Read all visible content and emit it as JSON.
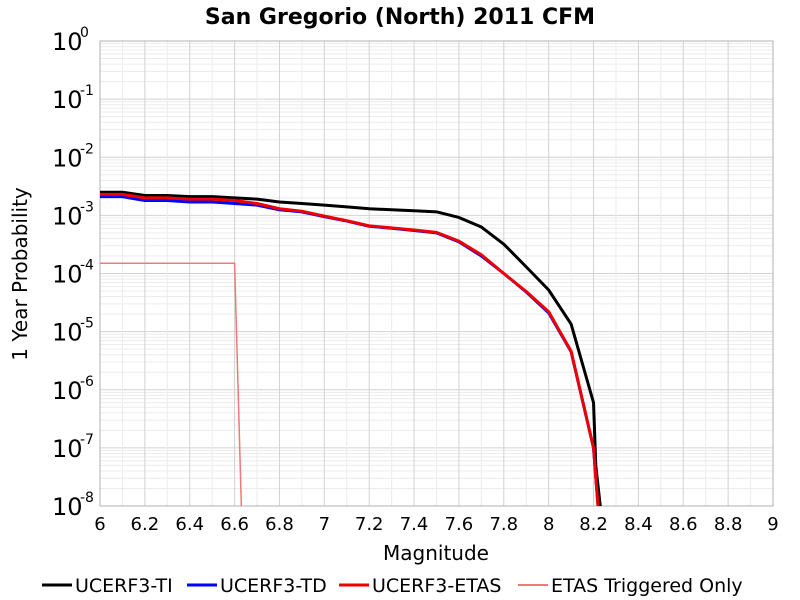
{
  "chart_data": {
    "type": "line",
    "title": "San Gregorio (North) 2011 CFM",
    "xlabel": "Magnitude",
    "ylabel": "1 Year Probability",
    "xlim": [
      6,
      9
    ],
    "ylim": [
      1e-08,
      1
    ],
    "y_scale": "log",
    "grid": true,
    "legend_position": "bottom",
    "x_ticks": [
      "6",
      "6.2",
      "6.4",
      "6.6",
      "6.8",
      "7",
      "7.2",
      "7.4",
      "7.6",
      "7.8",
      "8",
      "8.2",
      "8.4",
      "8.6",
      "8.8",
      "9"
    ],
    "y_ticks": [
      {
        "base": "10",
        "exp": "0",
        "value": 1
      },
      {
        "base": "10",
        "exp": "-1",
        "value": 0.1
      },
      {
        "base": "10",
        "exp": "-2",
        "value": 0.01
      },
      {
        "base": "10",
        "exp": "-3",
        "value": 0.001
      },
      {
        "base": "10",
        "exp": "-4",
        "value": 0.0001
      },
      {
        "base": "10",
        "exp": "-5",
        "value": 1e-05
      },
      {
        "base": "10",
        "exp": "-6",
        "value": 1e-06
      },
      {
        "base": "10",
        "exp": "-7",
        "value": 1e-07
      },
      {
        "base": "10",
        "exp": "-8",
        "value": 1e-08
      }
    ],
    "series": [
      {
        "name": "UCERF3-TI",
        "color": "#000000",
        "x": [
          6.0,
          6.1,
          6.2,
          6.3,
          6.4,
          6.5,
          6.6,
          6.7,
          6.8,
          6.9,
          7.0,
          7.1,
          7.2,
          7.3,
          7.4,
          7.5,
          7.6,
          7.7,
          7.8,
          7.9,
          8.0,
          8.1,
          8.2,
          8.21,
          8.23
        ],
        "y": [
          0.0025,
          0.0025,
          0.0022,
          0.0022,
          0.0021,
          0.0021,
          0.002,
          0.0019,
          0.0017,
          0.0016,
          0.0015,
          0.0014,
          0.0013,
          0.00125,
          0.0012,
          0.00115,
          0.00092,
          0.00063,
          0.00032,
          0.00013,
          5.2e-05,
          1.35e-05,
          6e-07,
          5e-08,
          1e-08
        ]
      },
      {
        "name": "UCERF3-TD",
        "color": "#0000ff",
        "x": [
          6.0,
          6.1,
          6.2,
          6.3,
          6.4,
          6.5,
          6.6,
          6.7,
          6.8,
          6.9,
          7.0,
          7.1,
          7.2,
          7.3,
          7.4,
          7.5,
          7.6,
          7.7,
          7.8,
          7.9,
          8.0,
          8.1,
          8.2,
          8.22
        ],
        "y": [
          0.0021,
          0.0021,
          0.0018,
          0.0018,
          0.0017,
          0.0017,
          0.0016,
          0.0015,
          0.00125,
          0.00115,
          0.00095,
          0.0008,
          0.00065,
          0.0006,
          0.00055,
          0.0005,
          0.00035,
          0.0002,
          0.0001,
          4.8e-05,
          2.1e-05,
          4.5e-06,
          1e-07,
          1e-08
        ]
      },
      {
        "name": "UCERF3-ETAS",
        "color": "#ee0000",
        "x": [
          6.0,
          6.1,
          6.2,
          6.3,
          6.4,
          6.5,
          6.6,
          6.7,
          6.8,
          6.9,
          7.0,
          7.1,
          7.2,
          7.3,
          7.4,
          7.5,
          7.6,
          7.7,
          7.8,
          7.9,
          8.0,
          8.1,
          8.2,
          8.22
        ],
        "y": [
          0.0023,
          0.0023,
          0.002,
          0.002,
          0.0019,
          0.0019,
          0.0018,
          0.0016,
          0.0013,
          0.00118,
          0.00097,
          0.00081,
          0.00066,
          0.00061,
          0.00056,
          0.00051,
          0.00036,
          0.00021,
          0.0001,
          4.9e-05,
          2.2e-05,
          4.6e-06,
          1e-07,
          1e-08
        ]
      },
      {
        "name": "ETAS Triggered Only",
        "color": "#f07878",
        "x": [
          6.0,
          6.1,
          6.2,
          6.3,
          6.4,
          6.5,
          6.6,
          6.63
        ],
        "y": [
          0.00015,
          0.00015,
          0.00015,
          0.00015,
          0.00015,
          0.00015,
          0.00015,
          1e-08
        ]
      }
    ]
  }
}
